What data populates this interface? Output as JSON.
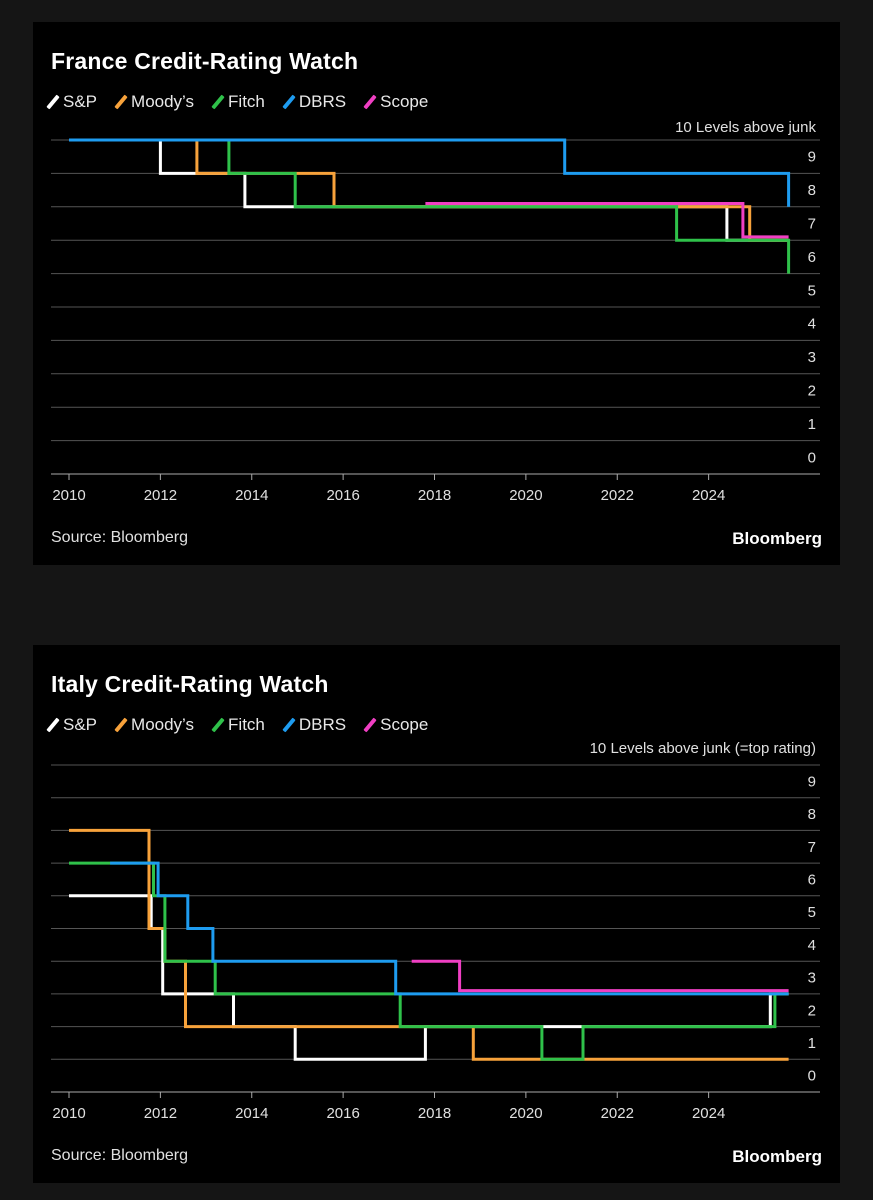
{
  "charts": [
    {
      "id": "france",
      "title": "France Credit-Rating Watch",
      "source": "Source: Bloomberg",
      "brand": "Bloomberg",
      "colors": {
        "S&P": "#ffffff",
        "Moody’s": "#f7a23b",
        "Fitch": "#2fc14a",
        "DBRS": "#1e9cf0",
        "Scope": "#f03fc3"
      }
    },
    {
      "id": "italy",
      "title": "Italy Credit-Rating Watch",
      "source": "Source: Bloomberg",
      "brand": "Bloomberg",
      "colors": {
        "S&P": "#ffffff",
        "Moody’s": "#f7a23b",
        "Fitch": "#2fc14a",
        "DBRS": "#1e9cf0",
        "Scope": "#f03fc3"
      }
    }
  ],
  "chart_data": [
    {
      "type": "line",
      "step": true,
      "title": "France Credit-Rating Watch",
      "ylabel": "10 Levels above junk",
      "ylim": [
        0,
        10
      ],
      "yticks": [
        0,
        1,
        2,
        3,
        4,
        5,
        6,
        7,
        8,
        9
      ],
      "xlim": [
        2010,
        2026
      ],
      "xticks": [
        2010,
        2012,
        2014,
        2016,
        2018,
        2020,
        2022,
        2024
      ],
      "legend_position": "top-left",
      "series": [
        {
          "name": "S&P",
          "color": "#ffffff",
          "points": [
            [
              2010,
              10
            ],
            [
              2012.0,
              9
            ],
            [
              2013.85,
              8
            ],
            [
              2024.4,
              7
            ],
            [
              2025.75,
              7
            ]
          ]
        },
        {
          "name": "Moody’s",
          "color": "#f7a23b",
          "points": [
            [
              2010,
              10
            ],
            [
              2012.8,
              9
            ],
            [
              2015.8,
              8
            ],
            [
              2024.9,
              7
            ],
            [
              2025.75,
              7
            ]
          ]
        },
        {
          "name": "Fitch",
          "color": "#2fc14a",
          "points": [
            [
              2010,
              10
            ],
            [
              2013.5,
              9
            ],
            [
              2014.95,
              8
            ],
            [
              2023.3,
              7
            ],
            [
              2024.4,
              7
            ],
            [
              2025.75,
              6
            ]
          ]
        },
        {
          "name": "DBRS",
          "color": "#1e9cf0",
          "points": [
            [
              2010,
              10
            ],
            [
              2020.85,
              9
            ],
            [
              2025.75,
              8
            ]
          ]
        },
        {
          "name": "Scope",
          "color": "#f03fc3",
          "points": [
            [
              2017.8,
              8.1
            ],
            [
              2024.75,
              7.1
            ],
            [
              2025.75,
              7.1
            ]
          ]
        }
      ]
    },
    {
      "type": "line",
      "step": true,
      "title": "Italy Credit-Rating Watch",
      "ylabel": "10 Levels above junk (=top rating)",
      "ylim": [
        0,
        10
      ],
      "yticks": [
        0,
        1,
        2,
        3,
        4,
        5,
        6,
        7,
        8,
        9
      ],
      "xlim": [
        2010,
        2026
      ],
      "xticks": [
        2010,
        2012,
        2014,
        2016,
        2018,
        2020,
        2022,
        2024
      ],
      "legend_position": "top-left",
      "series": [
        {
          "name": "S&P",
          "color": "#ffffff",
          "points": [
            [
              2010,
              6
            ],
            [
              2011.8,
              5
            ],
            [
              2012.05,
              3
            ],
            [
              2013.6,
              2
            ],
            [
              2014.95,
              1
            ],
            [
              2017.8,
              2
            ],
            [
              2025.35,
              3
            ],
            [
              2025.75,
              3
            ]
          ]
        },
        {
          "name": "Moody’s",
          "color": "#f7a23b",
          "points": [
            [
              2010,
              8
            ],
            [
              2011.75,
              5
            ],
            [
              2012.1,
              4
            ],
            [
              2012.55,
              2
            ],
            [
              2018.85,
              1
            ],
            [
              2025.75,
              1
            ]
          ]
        },
        {
          "name": "Fitch",
          "color": "#2fc14a",
          "points": [
            [
              2010,
              7
            ],
            [
              2011.85,
              6
            ],
            [
              2012.1,
              4
            ],
            [
              2013.2,
              3
            ],
            [
              2017.25,
              2
            ],
            [
              2020.35,
              1
            ],
            [
              2021.25,
              2
            ],
            [
              2025.45,
              3
            ],
            [
              2025.75,
              3
            ]
          ]
        },
        {
          "name": "DBRS",
          "color": "#1e9cf0",
          "points": [
            [
              2010.9,
              7
            ],
            [
              2011.95,
              6
            ],
            [
              2012.6,
              5
            ],
            [
              2013.15,
              4
            ],
            [
              2017.15,
              3
            ],
            [
              2025.75,
              3
            ]
          ]
        },
        {
          "name": "Scope",
          "color": "#f03fc3",
          "points": [
            [
              2017.5,
              4
            ],
            [
              2018.55,
              3.1
            ],
            [
              2025.75,
              3.1
            ]
          ]
        }
      ]
    }
  ]
}
